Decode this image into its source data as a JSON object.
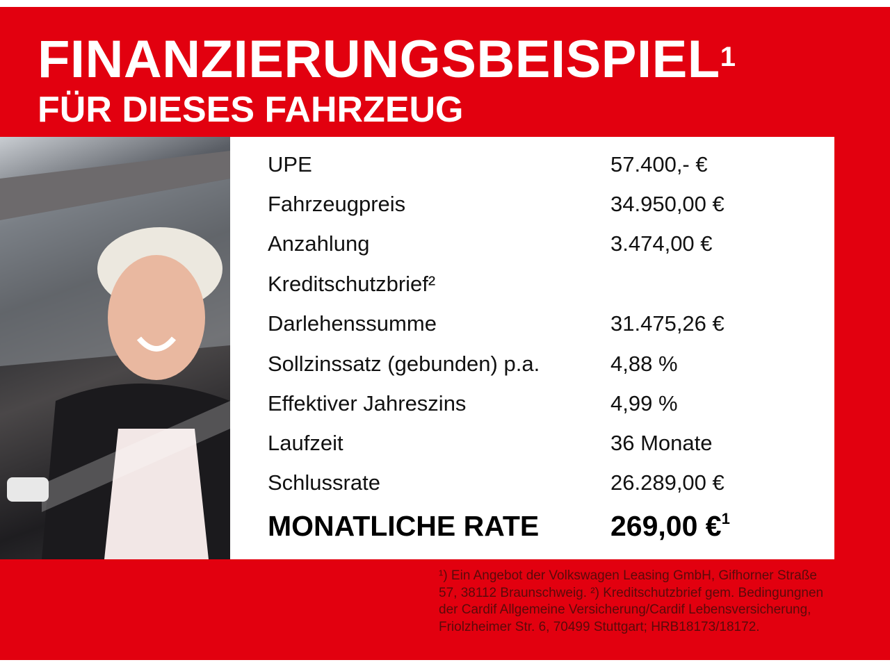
{
  "header": {
    "title": "FINANZIERUNGSBEISPIEL",
    "title_sup": "1",
    "subtitle": "FÜR DIESES FAHRZEUG"
  },
  "colors": {
    "brand_red": "#e2000f"
  },
  "image": {
    "subject": "woman-in-car-photo"
  },
  "rows": [
    {
      "label": "UPE",
      "value": "57.400,- €"
    },
    {
      "label": "Fahrzeugpreis",
      "value": "34.950,00 €"
    },
    {
      "label": "Anzahlung",
      "value": "3.474,00 €"
    },
    {
      "label": "Kreditschutzbrief²",
      "value": ""
    },
    {
      "label": "Darlehenssumme",
      "value": "31.475,26 €"
    },
    {
      "label": "Sollzinssatz (gebunden) p.a.",
      "value": "4,88 %"
    },
    {
      "label": "Effektiver Jahreszins",
      "value": "4,99 %"
    },
    {
      "label": "Laufzeit",
      "value": "36 Monate"
    },
    {
      "label": "Schlussrate",
      "value": "26.289,00 €"
    }
  ],
  "monthly": {
    "label": "MONATLICHE RATE",
    "value": "269,00 €",
    "sup": "1"
  },
  "footnote": "¹) Ein Angebot der Volkswagen Leasing GmbH, Gifhorner Straße 57, 38112 Braunschweig. ²) Kreditschutzbrief gem. Bedingungnen der Cardif Allgemeine Versicherung/Cardif Lebensversicherung, Friolzheimer Str. 6, 70499 Stuttgart; HRB18173/18172."
}
